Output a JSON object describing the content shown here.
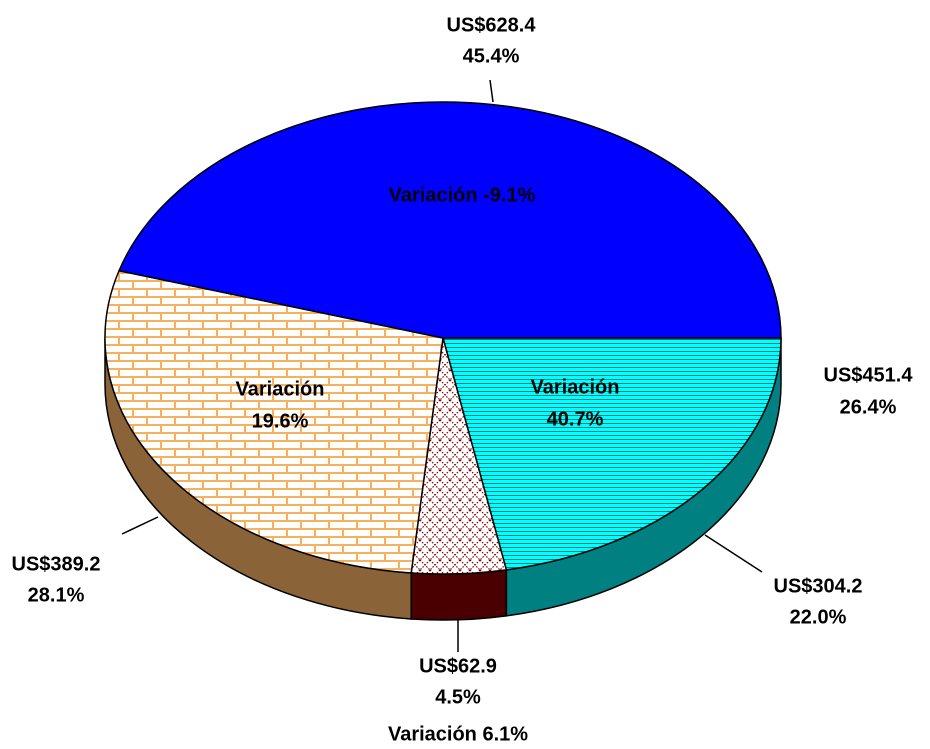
{
  "chart_data": {
    "type": "pie",
    "values": [
      22.0,
      4.5,
      28.1,
      45.4
    ],
    "value_labels": [
      "22.0%",
      "4.5%",
      "28.1%",
      "45.4%"
    ],
    "amount_labels": [
      "US$304.2",
      "US$62.9",
      "US$389.2",
      "US$628.4"
    ],
    "variation_labels": [
      [
        "Variación",
        "40.7%"
      ],
      [
        "Variación 6.1%"
      ],
      [
        "Variación",
        "19.6%"
      ],
      [
        "Variación -9.1%"
      ]
    ],
    "colors": [
      "#00ffff",
      "#800000",
      "#f5b060",
      "#0000ff"
    ],
    "side_colors": [
      "#008080",
      "#4a0000",
      "#8a6438",
      "#00007f"
    ],
    "fill_patterns": [
      "stripes",
      "diamonds",
      "bricks",
      "solid"
    ],
    "annotations": [
      "US$451.4",
      "26.4%"
    ]
  }
}
